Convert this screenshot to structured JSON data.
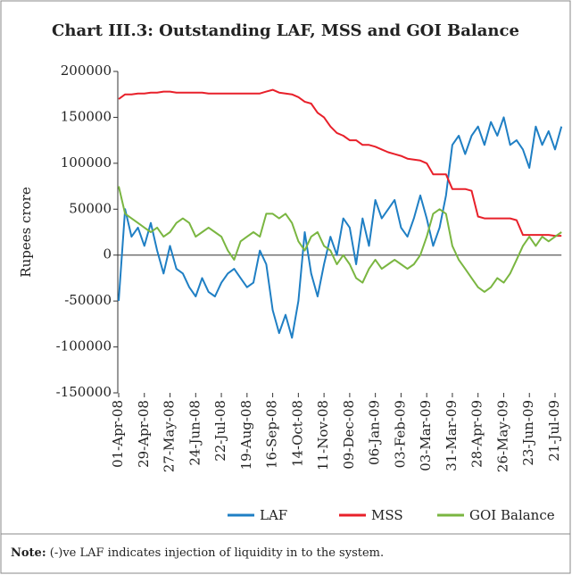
{
  "chart_data": {
    "type": "line",
    "title": "Chart III.3: Outstanding LAF, MSS and GOI Balance",
    "y_label": "Rupees crore",
    "note_label": "Note:",
    "note": "(-)ve LAF indicates injection of liquidity in to the system.",
    "categories": [
      "01-Apr-08",
      null,
      null,
      null,
      "29-Apr-08",
      null,
      null,
      null,
      "27-May-08",
      null,
      null,
      null,
      "24-Jun-08",
      null,
      null,
      null,
      "22-Jul-08",
      null,
      null,
      null,
      "19-Aug-08",
      null,
      null,
      null,
      "16-Sep-08",
      null,
      null,
      null,
      "14-Oct-08",
      null,
      null,
      null,
      "11-Nov-08",
      null,
      null,
      null,
      "09-Dec-08",
      null,
      null,
      null,
      "06-Jan-09",
      null,
      null,
      null,
      "03-Feb-09",
      null,
      null,
      null,
      "03-Mar-09",
      null,
      null,
      null,
      "31-Mar-09",
      null,
      null,
      null,
      "28-Apr-09",
      null,
      null,
      null,
      "26-May-09",
      null,
      null,
      null,
      "23-Jun-09",
      null,
      null,
      null,
      "21-Jul-09",
      null
    ],
    "series": [
      {
        "name": "LAF",
        "color": "#1f7fc4",
        "values": [
          -50000,
          50000,
          20000,
          30000,
          10000,
          35000,
          5000,
          -20000,
          10000,
          -15000,
          -20000,
          -35000,
          -45000,
          -25000,
          -40000,
          -45000,
          -30000,
          -20000,
          -15000,
          -25000,
          -35000,
          -30000,
          5000,
          -10000,
          -60000,
          -85000,
          -65000,
          -90000,
          -50000,
          25000,
          -20000,
          -45000,
          -10000,
          20000,
          0,
          40000,
          30000,
          -10000,
          40000,
          10000,
          60000,
          40000,
          50000,
          60000,
          30000,
          20000,
          40000,
          65000,
          40000,
          10000,
          30000,
          65000,
          120000,
          130000,
          110000,
          130000,
          140000,
          120000,
          145000,
          130000,
          150000,
          120000,
          125000,
          115000,
          95000,
          140000,
          120000,
          135000,
          115000,
          140000
        ]
      },
      {
        "name": "MSS",
        "color": "#e8202a",
        "values": [
          170000,
          175000,
          175000,
          176000,
          176000,
          177000,
          177000,
          178000,
          178000,
          177000,
          177000,
          177000,
          177000,
          177000,
          176000,
          176000,
          176000,
          176000,
          176000,
          176000,
          176000,
          176000,
          176000,
          178000,
          180000,
          177000,
          176000,
          175000,
          172000,
          167000,
          165000,
          155000,
          150000,
          140000,
          133000,
          130000,
          125000,
          125000,
          120000,
          120000,
          118000,
          115000,
          112000,
          110000,
          108000,
          105000,
          104000,
          103000,
          100000,
          88000,
          88000,
          88000,
          72000,
          72000,
          72000,
          70000,
          42000,
          40000,
          40000,
          40000,
          40000,
          40000,
          38000,
          22000,
          22000,
          22000,
          22000,
          22000,
          21000,
          21000
        ]
      },
      {
        "name": "GOI Balance",
        "color": "#7ab641",
        "values": [
          75000,
          45000,
          40000,
          35000,
          30000,
          25000,
          30000,
          20000,
          25000,
          35000,
          40000,
          35000,
          20000,
          25000,
          30000,
          25000,
          20000,
          5000,
          -5000,
          15000,
          20000,
          25000,
          20000,
          45000,
          45000,
          40000,
          45000,
          35000,
          15000,
          5000,
          20000,
          25000,
          10000,
          5000,
          -10000,
          0,
          -10000,
          -25000,
          -30000,
          -15000,
          -5000,
          -15000,
          -10000,
          -5000,
          -10000,
          -15000,
          -10000,
          0,
          20000,
          45000,
          50000,
          45000,
          10000,
          -5000,
          -15000,
          -25000,
          -35000,
          -40000,
          -35000,
          -25000,
          -30000,
          -20000,
          -5000,
          10000,
          20000,
          10000,
          20000,
          15000,
          20000,
          25000
        ]
      }
    ],
    "ylim": [
      -150000,
      200000
    ],
    "yticks": [
      -150000,
      -100000,
      -50000,
      0,
      50000,
      100000,
      150000,
      200000
    ]
  }
}
